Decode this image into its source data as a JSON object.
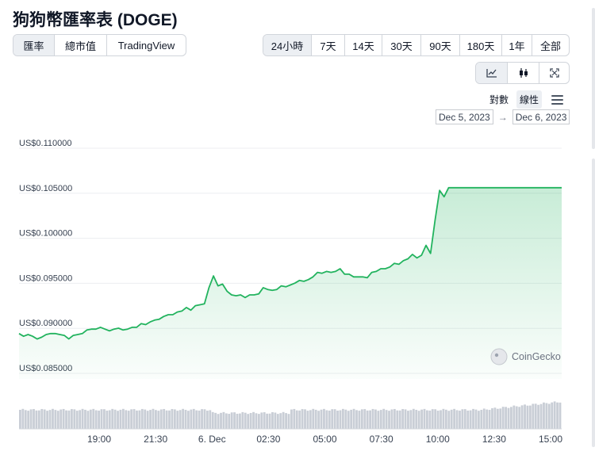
{
  "title": "狗狗幣匯率表 (DOGE)",
  "view_tabs": [
    "匯率",
    "總市值",
    "TradingView"
  ],
  "range_tabs": [
    "24小時",
    "7天",
    "14天",
    "30天",
    "90天",
    "180天",
    "1年",
    "全部"
  ],
  "chart_type_icons": [
    "line-chart-icon",
    "candlestick-icon",
    "expand-icon"
  ],
  "scale_options": [
    "對數",
    "線性"
  ],
  "date_range": {
    "from": "Dec 5, 2023",
    "to": "Dec 6, 2023",
    "arrow": "→"
  },
  "watermark": "CoinGecko",
  "colors": {
    "line": "#22b35e",
    "fill": "#d9f0df",
    "volume": "#c9ced6",
    "active_tab": "#eceff3"
  },
  "chart_data": {
    "type": "area",
    "title": "",
    "xlabel": "",
    "ylabel": "",
    "ylim": [
      0.085,
      0.11
    ],
    "y_ticks": [
      "US$0.110000",
      "US$0.105000",
      "US$0.100000",
      "US$0.095000",
      "US$0.090000",
      "US$0.085000"
    ],
    "x_ticks": [
      "19:00",
      "21:30",
      "6. Dec",
      "02:30",
      "05:00",
      "07:30",
      "10:00",
      "12:30",
      "15:00"
    ],
    "grid": true,
    "series": [
      {
        "x_hours": [
          0,
          0.2,
          0.4,
          0.6,
          0.8,
          1,
          1.2,
          1.4,
          1.6,
          1.8,
          2,
          2.2,
          2.4,
          2.6,
          2.8,
          3,
          3.2,
          3.4,
          3.6,
          3.8,
          4,
          4.2,
          4.4,
          4.6,
          4.8,
          5,
          5.2,
          5.4,
          5.6,
          5.8,
          6,
          6.2,
          6.4,
          6.6,
          6.8,
          7,
          7.2,
          7.4,
          7.6,
          7.8,
          8,
          8.2,
          8.4,
          8.6,
          8.8,
          9,
          9.2,
          9.4,
          9.6,
          9.8,
          10,
          10.2,
          10.4,
          10.6,
          10.8,
          11,
          11.2,
          11.4,
          11.6,
          11.8,
          12,
          12.2,
          12.4,
          12.6,
          12.8,
          13,
          13.2,
          13.4,
          13.6,
          13.8,
          14,
          14.2,
          14.4,
          14.6,
          14.8,
          15,
          15.2,
          15.4,
          15.6,
          15.8,
          16,
          16.2,
          16.4,
          16.6,
          16.8,
          17,
          17.2,
          17.4,
          17.6,
          17.8,
          18,
          18.2,
          18.4,
          18.6,
          18.8,
          19,
          19.2,
          19.4,
          19.6,
          19.8,
          20,
          20.2,
          20.4,
          20.6,
          20.8,
          21,
          21.2,
          21.4,
          21.6,
          21.8,
          22,
          22.2,
          22.4,
          22.6,
          22.8,
          23,
          23.2,
          23.4,
          23.6,
          23.8,
          24
        ],
        "values": [
          0.0888,
          0.0885,
          0.0887,
          0.0885,
          0.0882,
          0.0884,
          0.0887,
          0.0888,
          0.0888,
          0.0887,
          0.0886,
          0.0882,
          0.0886,
          0.0887,
          0.0888,
          0.0892,
          0.0893,
          0.0893,
          0.0895,
          0.0893,
          0.0891,
          0.0893,
          0.0894,
          0.0892,
          0.0893,
          0.0895,
          0.0895,
          0.0899,
          0.0898,
          0.0901,
          0.0903,
          0.0904,
          0.0907,
          0.0909,
          0.0909,
          0.0912,
          0.0913,
          0.0917,
          0.0914,
          0.0919,
          0.092,
          0.0921,
          0.0939,
          0.0952,
          0.0941,
          0.0943,
          0.0935,
          0.0931,
          0.093,
          0.0931,
          0.0928,
          0.0931,
          0.0931,
          0.0932,
          0.0939,
          0.0937,
          0.0936,
          0.0937,
          0.0941,
          0.094,
          0.0942,
          0.0944,
          0.0947,
          0.0946,
          0.0948,
          0.0951,
          0.0956,
          0.0955,
          0.0957,
          0.0956,
          0.0957,
          0.096,
          0.0954,
          0.0954,
          0.0951,
          0.0951,
          0.0951,
          0.095,
          0.0956,
          0.0957,
          0.096,
          0.096,
          0.0962,
          0.0966,
          0.0965,
          0.0969,
          0.0971,
          0.0976,
          0.0972,
          0.0975,
          0.0986,
          0.0977,
          0.1014,
          0.1047,
          0.104,
          0.105,
          0.105,
          0.105,
          0.105,
          0.105,
          0.105,
          0.105,
          0.105,
          0.105,
          0.105,
          0.105,
          0.105,
          0.105,
          0.105,
          0.105,
          0.105,
          0.105,
          0.105,
          0.105,
          0.105,
          0.105,
          0.105,
          0.105,
          0.105,
          0.105,
          0.105
        ]
      }
    ]
  }
}
